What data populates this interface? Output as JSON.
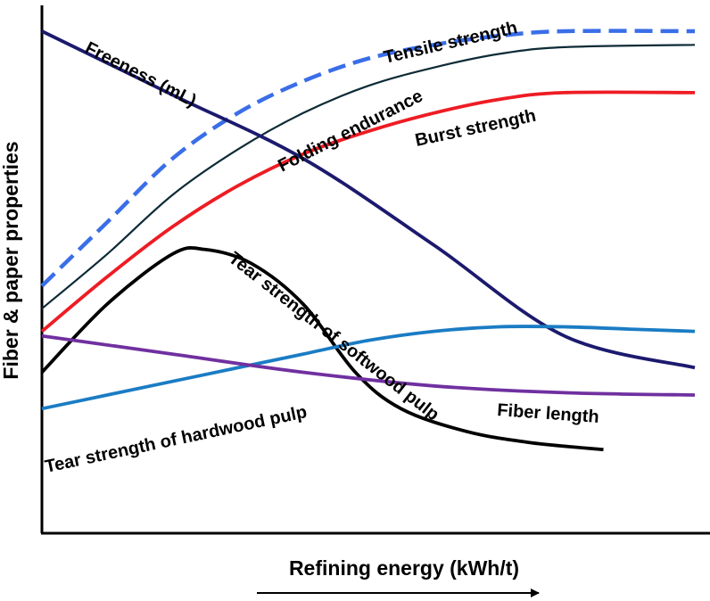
{
  "chart_data": {
    "type": "line",
    "xlabel": "Refining energy (kWh/t)",
    "ylabel": "Fiber & paper properties",
    "xlim": [
      0,
      100
    ],
    "ylim": [
      0,
      100
    ],
    "x_ticks": false,
    "y_ticks": false,
    "grid": false,
    "legend": "none (curves labelled inline)",
    "x_direction_arrow": true,
    "series": [
      {
        "name": "Tensile strength",
        "color": "#3A6EE8",
        "style": "dashed",
        "points": [
          [
            0,
            44
          ],
          [
            10,
            58
          ],
          [
            20,
            72
          ],
          [
            30,
            82
          ],
          [
            40,
            89
          ],
          [
            50,
            94
          ],
          [
            60,
            97
          ],
          [
            70,
            99
          ],
          [
            80,
            100
          ],
          [
            100,
            100
          ]
        ]
      },
      {
        "name": "Folding endurance",
        "color": "#0D2B36",
        "style": "solid",
        "points": [
          [
            0,
            39
          ],
          [
            10,
            51
          ],
          [
            20,
            64
          ],
          [
            30,
            74
          ],
          [
            40,
            82
          ],
          [
            50,
            88
          ],
          [
            60,
            92
          ],
          [
            70,
            95
          ],
          [
            80,
            96.5
          ],
          [
            100,
            97
          ]
        ]
      },
      {
        "name": "Burst strength",
        "color": "#EE1C24",
        "style": "solid",
        "points": [
          [
            0,
            34
          ],
          [
            10,
            46
          ],
          [
            20,
            57
          ],
          [
            30,
            66
          ],
          [
            40,
            73
          ],
          [
            50,
            78
          ],
          [
            60,
            82
          ],
          [
            70,
            85
          ],
          [
            80,
            86.5
          ],
          [
            100,
            86.5
          ]
        ]
      },
      {
        "name": "Freeness (mL)",
        "color": "#1C1A6E",
        "style": "solid",
        "points": [
          [
            0,
            100
          ],
          [
            20,
            86
          ],
          [
            40,
            72
          ],
          [
            60,
            53
          ],
          [
            80,
            33
          ],
          [
            100,
            26
          ]
        ]
      },
      {
        "name": "Tear strength of softwood pulp",
        "color": "#000000",
        "style": "solid",
        "points": [
          [
            0,
            25
          ],
          [
            10,
            40
          ],
          [
            20,
            51
          ],
          [
            25,
            52
          ],
          [
            32,
            49
          ],
          [
            40,
            40
          ],
          [
            48,
            25
          ],
          [
            55,
            17
          ],
          [
            65,
            12
          ],
          [
            75,
            9.5
          ],
          [
            86,
            8
          ]
        ]
      },
      {
        "name": "Tear strength of hardwood pulp",
        "color": "#1A7CC4",
        "style": "solid",
        "points": [
          [
            0,
            17
          ],
          [
            10,
            20
          ],
          [
            20,
            23
          ],
          [
            30,
            26
          ],
          [
            40,
            29
          ],
          [
            50,
            32
          ],
          [
            60,
            34
          ],
          [
            70,
            35
          ],
          [
            80,
            35
          ],
          [
            90,
            34.5
          ],
          [
            100,
            34
          ]
        ]
      },
      {
        "name": "Fiber length",
        "color": "#7030A0",
        "style": "solid",
        "points": [
          [
            0,
            33
          ],
          [
            20,
            29
          ],
          [
            40,
            25
          ],
          [
            60,
            22
          ],
          [
            80,
            20.5
          ],
          [
            100,
            20
          ]
        ]
      }
    ]
  }
}
